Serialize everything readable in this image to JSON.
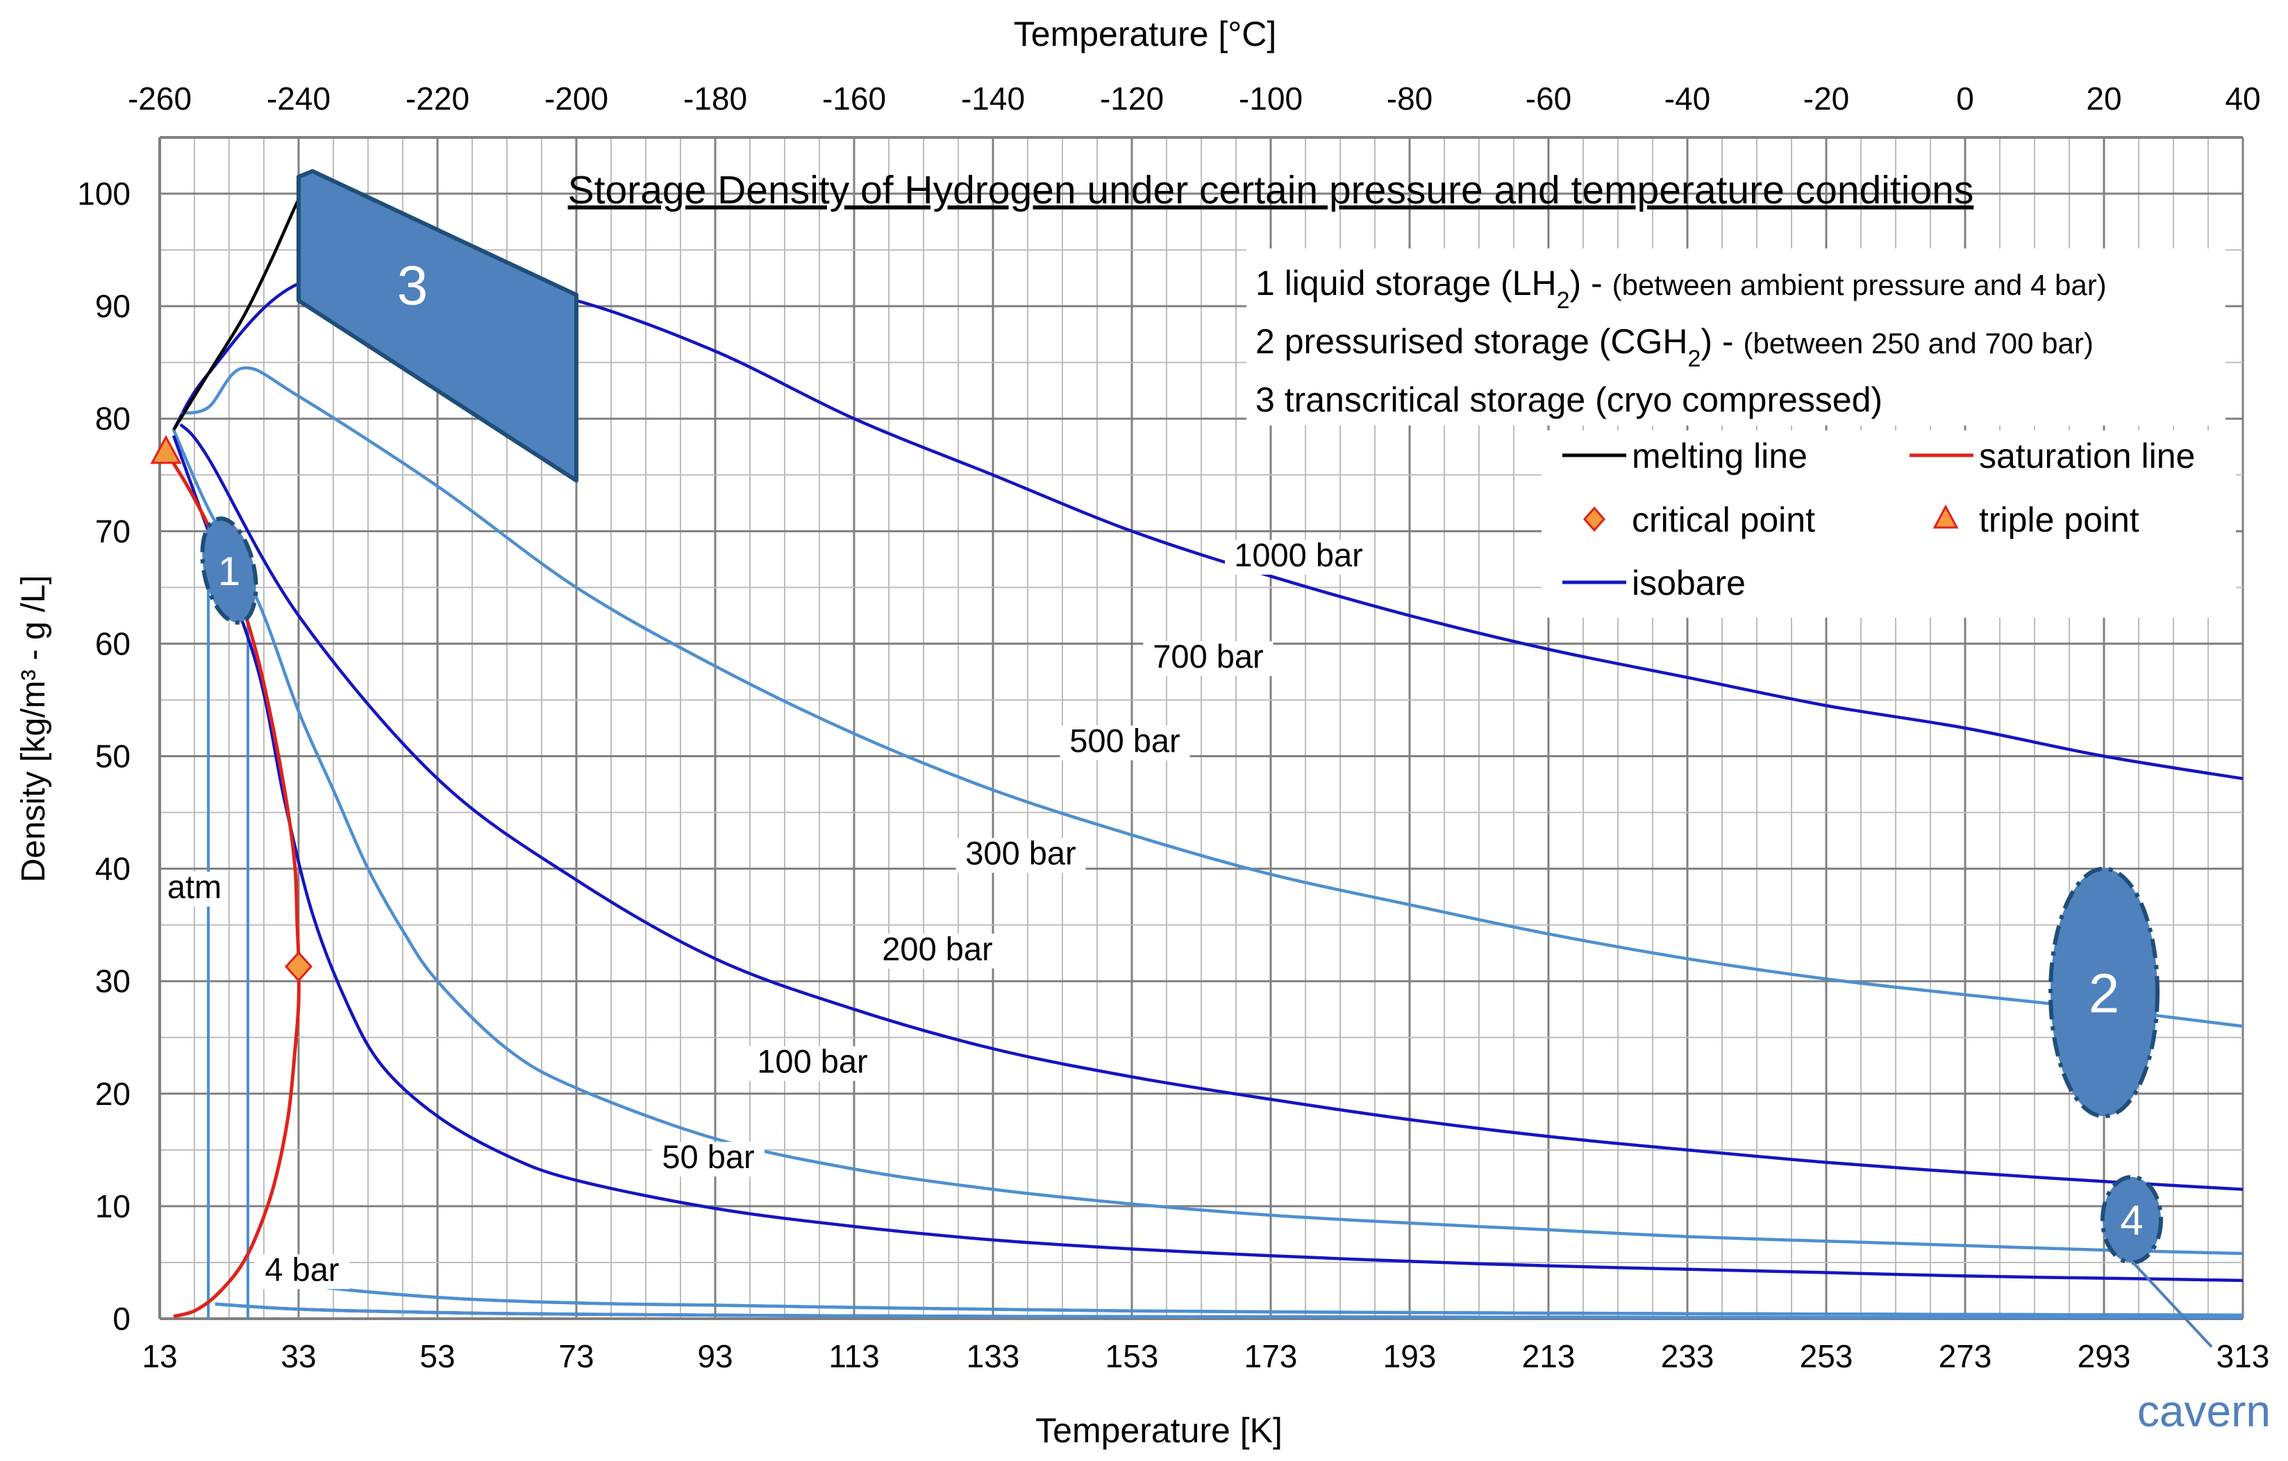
{
  "chart_data": {
    "type": "line",
    "title": "Storage Density of Hydrogen under certain pressure and temperature conditions",
    "xlabel": "Temperature [K]",
    "x2label": "Temperature [°C]",
    "ylabel": "Density [kg/m³  -  g /L]",
    "xlim": [
      13,
      313
    ],
    "ylim": [
      0,
      105
    ],
    "x_ticks": [
      "13",
      "33",
      "53",
      "73",
      "93",
      "113",
      "133",
      "153",
      "173",
      "193",
      "213",
      "233",
      "253",
      "273",
      "293",
      "313"
    ],
    "x2_ticks": [
      "-260",
      "-240",
      "-220",
      "-200",
      "-180",
      "-160",
      "-140",
      "-120",
      "-100",
      "-80",
      "-60",
      "-40",
      "-20",
      "0",
      "20",
      "40"
    ],
    "y_ticks": [
      "0",
      "10",
      "20",
      "30",
      "40",
      "50",
      "60",
      "70",
      "80",
      "90",
      "100"
    ],
    "grid": true,
    "series": [
      {
        "name": "1000 bar",
        "color": "#1515c0",
        "points": [
          [
            15,
            79
          ],
          [
            20,
            84
          ],
          [
            33,
            92
          ],
          [
            53,
            93
          ],
          [
            73,
            90.5
          ],
          [
            93,
            86
          ],
          [
            113,
            80
          ],
          [
            133,
            75
          ],
          [
            153,
            70
          ],
          [
            173,
            66
          ],
          [
            193,
            62.5
          ],
          [
            213,
            59.5
          ],
          [
            233,
            57
          ],
          [
            253,
            54.5
          ],
          [
            273,
            52.5
          ],
          [
            293,
            50
          ],
          [
            313,
            48
          ]
        ]
      },
      {
        "name": "700 bar",
        "color": "#4e8fcf",
        "points": [
          [
            16,
            80.5
          ],
          [
            20,
            81
          ],
          [
            25,
            84.5
          ],
          [
            33,
            82
          ],
          [
            53,
            74
          ],
          [
            73,
            65
          ],
          [
            93,
            58
          ],
          [
            113,
            52
          ],
          [
            133,
            47
          ],
          [
            153,
            43
          ],
          [
            173,
            39.5
          ],
          [
            193,
            36.8
          ],
          [
            213,
            34.2
          ],
          [
            233,
            32
          ],
          [
            253,
            30.2
          ],
          [
            273,
            28.8
          ],
          [
            293,
            27.5
          ],
          [
            313,
            26
          ]
        ]
      },
      {
        "name": "500 bar",
        "color": "#1515c0",
        "points": [
          [
            16,
            79.5
          ],
          [
            20,
            76.5
          ],
          [
            33,
            62.5
          ],
          [
            53,
            48
          ],
          [
            73,
            39
          ],
          [
            93,
            32
          ],
          [
            113,
            27.5
          ],
          [
            133,
            24
          ],
          [
            153,
            21.5
          ],
          [
            173,
            19.5
          ],
          [
            193,
            17.7
          ],
          [
            213,
            16.2
          ],
          [
            233,
            15
          ],
          [
            253,
            13.9
          ],
          [
            273,
            13
          ],
          [
            293,
            12.2
          ],
          [
            313,
            11.5
          ]
        ]
      },
      {
        "name": "300 bar",
        "color": "#4e8fcf",
        "points": [
          [
            15,
            79
          ],
          [
            20,
            72
          ],
          [
            27,
            64
          ],
          [
            33,
            54
          ],
          [
            38,
            47
          ],
          [
            43,
            40
          ],
          [
            48,
            34.5
          ],
          [
            53,
            30
          ],
          [
            63,
            24
          ],
          [
            73,
            20.5
          ],
          [
            93,
            16
          ],
          [
            113,
            13.3
          ],
          [
            133,
            11.5
          ],
          [
            153,
            10.2
          ],
          [
            173,
            9.2
          ],
          [
            193,
            8.5
          ],
          [
            213,
            7.9
          ],
          [
            233,
            7.3
          ],
          [
            253,
            6.9
          ],
          [
            273,
            6.5
          ],
          [
            293,
            6.1
          ],
          [
            313,
            5.8
          ]
        ]
      },
      {
        "name": "200 bar",
        "color": "#1515c0",
        "points": [
          [
            15,
            78.5
          ],
          [
            20,
            70
          ],
          [
            27,
            58
          ],
          [
            31,
            46
          ],
          [
            35,
            36
          ],
          [
            40,
            28
          ],
          [
            45,
            22.5
          ],
          [
            53,
            18
          ],
          [
            63,
            14.5
          ],
          [
            73,
            12.3
          ],
          [
            93,
            9.8
          ],
          [
            113,
            8.2
          ],
          [
            133,
            7
          ],
          [
            153,
            6.2
          ],
          [
            173,
            5.6
          ],
          [
            193,
            5.1
          ],
          [
            213,
            4.7
          ],
          [
            233,
            4.4
          ],
          [
            253,
            4.1
          ],
          [
            273,
            3.8
          ],
          [
            293,
            3.6
          ],
          [
            313,
            3.4
          ]
        ]
      },
      {
        "name": "100 bar",
        "color": "#4e8fcf",
        "points": [
          [
            27,
            4.6
          ],
          [
            33,
            3.1
          ],
          [
            53,
            1.9
          ],
          [
            73,
            1.4
          ],
          [
            93,
            1.2
          ],
          [
            113,
            1.0
          ],
          [
            153,
            0.7
          ],
          [
            193,
            0.55
          ],
          [
            233,
            0.45
          ],
          [
            273,
            0.38
          ],
          [
            313,
            0.32
          ]
        ]
      },
      {
        "name": "50 bar",
        "color": "#1515c0",
        "points": [
          [
            21,
            1.3
          ],
          [
            33,
            0.85
          ],
          [
            53,
            0.55
          ],
          [
            73,
            0.4
          ],
          [
            113,
            0.25
          ],
          [
            153,
            0.18
          ],
          [
            193,
            0.15
          ],
          [
            233,
            0.12
          ],
          [
            273,
            0.1
          ],
          [
            313,
            0.09
          ]
        ]
      },
      {
        "name": "4 bar",
        "color": "#4e8fcf",
        "points": [
          [
            27,
            4.6
          ],
          [
            33,
            3.1
          ],
          [
            53,
            1.9
          ],
          [
            73,
            1.4
          ],
          [
            93,
            1.2
          ],
          [
            113,
            1.0
          ],
          [
            153,
            0.7
          ],
          [
            193,
            0.55
          ],
          [
            233,
            0.45
          ],
          [
            273,
            0.38
          ],
          [
            313,
            0.32
          ]
        ]
      },
      {
        "name": "atm",
        "color": "#4e8fcf",
        "points": [
          [
            21,
            1.3
          ],
          [
            33,
            0.85
          ],
          [
            53,
            0.55
          ],
          [
            73,
            0.4
          ],
          [
            113,
            0.25
          ],
          [
            153,
            0.18
          ],
          [
            193,
            0.15
          ],
          [
            233,
            0.12
          ],
          [
            273,
            0.1
          ],
          [
            313,
            0.09
          ]
        ]
      }
    ],
    "melting_line": {
      "name": "melting line",
      "color": "#000000",
      "points": [
        [
          15,
          79
        ],
        [
          20,
          84
        ],
        [
          25,
          89
        ],
        [
          29,
          94
        ],
        [
          33,
          99.5
        ],
        [
          35,
          101.5
        ]
      ]
    },
    "saturation_line": {
      "name": "saturation line",
      "color": "#e0221b",
      "points": [
        [
          14,
          77
        ],
        [
          17,
          74
        ],
        [
          20,
          70.5
        ],
        [
          24,
          65
        ],
        [
          27,
          59
        ],
        [
          29.5,
          52
        ],
        [
          31.5,
          45
        ],
        [
          32.5,
          40
        ],
        [
          32.8,
          35
        ],
        [
          33,
          32
        ],
        [
          33,
          28
        ],
        [
          32.5,
          24
        ],
        [
          31.5,
          18
        ],
        [
          29.5,
          12
        ],
        [
          27,
          7.5
        ],
        [
          24.5,
          4.5
        ],
        [
          21,
          2
        ],
        [
          18,
          0.7
        ],
        [
          15,
          0.2
        ]
      ]
    },
    "triple_point": {
      "name": "triple point",
      "x": 13.9,
      "y": 77
    },
    "critical_point": {
      "name": "critical point",
      "x": 33,
      "y": 31.3
    },
    "verticals": [
      {
        "x": 20,
        "y_top": 65,
        "color": "#4e8fcf"
      },
      {
        "x": 25.7,
        "y_top": 62,
        "color": "#4e8fcf"
      }
    ],
    "curve_labels": [
      {
        "text": "1000 bar",
        "x": 177,
        "y": 67
      },
      {
        "text": "700 bar",
        "x": 164,
        "y": 58
      },
      {
        "text": "500 bar",
        "x": 152,
        "y": 50.5
      },
      {
        "text": "300 bar",
        "x": 137,
        "y": 40.5
      },
      {
        "text": "200 bar",
        "x": 125,
        "y": 32
      },
      {
        "text": "100 bar",
        "x": 107,
        "y": 22
      },
      {
        "text": "50 bar",
        "x": 92,
        "y": 13.5
      },
      {
        "text": "4 bar",
        "x": 33.5,
        "y": 3.5
      },
      {
        "text": "atm",
        "x": 18,
        "y": 37.5
      }
    ],
    "regions": [
      {
        "label": "1",
        "cx": 23,
        "cy": 66.5,
        "rx": 3.6,
        "ry": 4.7
      },
      {
        "label": "2",
        "cx": 293,
        "cy": 29,
        "rx": 7.7,
        "ry": 11
      },
      {
        "label": "4",
        "cx": 297,
        "cy": 8.8,
        "rx": 4.2,
        "ry": 3.8
      }
    ],
    "region_3": {
      "label": "3",
      "points": [
        [
          33,
          101.5
        ],
        [
          35,
          102
        ],
        [
          73,
          91
        ],
        [
          73,
          74.5
        ],
        [
          33,
          90.5
        ]
      ]
    },
    "cavern_label": "cavern",
    "region_legend": [
      {
        "main": "1 liquid storage (LH",
        "sub": "2",
        "rest": ") - ",
        "note": "(between ambient pressure and 4 bar)"
      },
      {
        "main": "2 pressurised storage (CGH",
        "sub": "2",
        "rest": ") - ",
        "note": "(between 250 and 700 bar)"
      },
      {
        "main": "3 transcritical storage (cryo compressed)",
        "sub": "",
        "rest": "",
        "note": ""
      }
    ],
    "legend": [
      {
        "label": "melting line",
        "kind": "line",
        "color": "#000000"
      },
      {
        "label": "saturation line",
        "kind": "line",
        "color": "#e0221b"
      },
      {
        "label": "critical point",
        "kind": "diamond",
        "color": "#f39a3e"
      },
      {
        "label": "triple point",
        "kind": "triangle",
        "color": "#f39a3e"
      },
      {
        "label": "isobare",
        "kind": "line",
        "color": "#1515c0"
      }
    ],
    "colors": {
      "region_fill": "#4f81bd",
      "region_stroke": "#1f4e79",
      "marker_stroke": "#e0221b",
      "grid": "#bdbdbd",
      "grid_major": "#808080",
      "cavern": "#4f81bd"
    }
  }
}
